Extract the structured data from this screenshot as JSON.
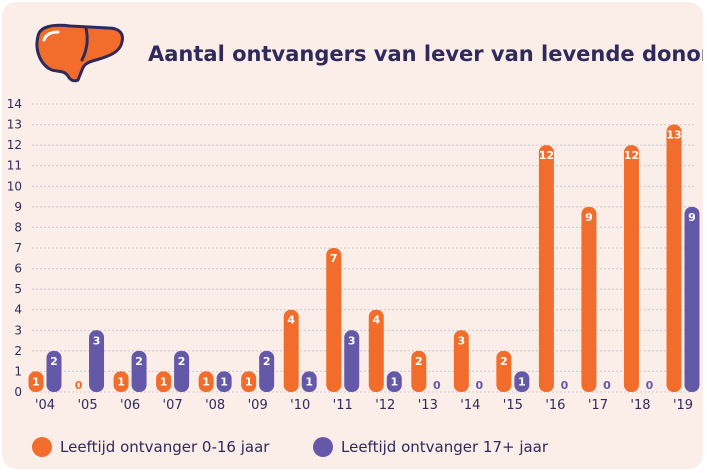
{
  "title": "Aantal ontvangers van lever van levende donor",
  "colors": {
    "orange": "#f26d2b",
    "purple": "#6458a9",
    "bg": "#fbeee9",
    "grid": "#c7ccd8",
    "text": "#2f2a5b"
  },
  "icons": {
    "logo": "liver-icon"
  },
  "chart_data": {
    "type": "bar",
    "categories": [
      "'04",
      "'05",
      "'06",
      "'07",
      "'08",
      "'09",
      "'10",
      "'11",
      "'12",
      "'13",
      "'14",
      "'15",
      "'16",
      "'17",
      "'18",
      "'19"
    ],
    "series": [
      {
        "name": "Leeftijd ontvanger 0-16 jaar",
        "values": [
          1,
          0,
          1,
          1,
          1,
          1,
          4,
          7,
          4,
          2,
          3,
          2,
          12,
          9,
          12,
          13
        ]
      },
      {
        "name": "Leeftijd ontvanger 17+ jaar",
        "values": [
          2,
          3,
          2,
          2,
          1,
          2,
          1,
          3,
          1,
          0,
          0,
          1,
          0,
          0,
          0,
          9
        ]
      }
    ],
    "ylim": [
      0,
      14
    ],
    "yticks": [
      0,
      1,
      2,
      3,
      4,
      5,
      6,
      7,
      8,
      9,
      10,
      11,
      12,
      13,
      14
    ],
    "grid": true,
    "legend": "bottom-left"
  }
}
